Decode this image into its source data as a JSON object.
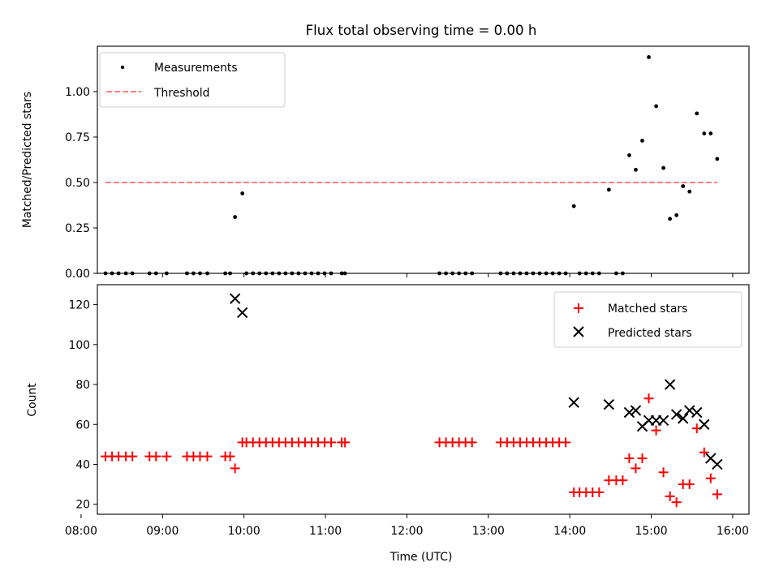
{
  "chart_data": [
    {
      "type": "scatter",
      "title": "Flux total observing time = 0.00 h",
      "ylabel": "Matched/Predicted stars",
      "xlabel": "",
      "xlim": [
        8.2,
        16.2
      ],
      "ylim": [
        0,
        1.25
      ],
      "x_ticks": [
        "08:00",
        "09:00",
        "10:00",
        "11:00",
        "12:00",
        "13:00",
        "14:00",
        "15:00",
        "16:00"
      ],
      "y_ticks": [
        "0.00",
        "0.25",
        "0.50",
        "0.75",
        "1.00"
      ],
      "legend_position": "upper-left",
      "grid": false,
      "series": [
        {
          "name": "Measurements",
          "color": "#000000",
          "marker": "dot",
          "points": [
            [
              8.3,
              0
            ],
            [
              8.38,
              0
            ],
            [
              8.46,
              0
            ],
            [
              8.55,
              0
            ],
            [
              8.63,
              0
            ],
            [
              8.84,
              0
            ],
            [
              8.92,
              0
            ],
            [
              9.05,
              0
            ],
            [
              9.3,
              0
            ],
            [
              9.38,
              0
            ],
            [
              9.46,
              0
            ],
            [
              9.55,
              0
            ],
            [
              9.77,
              0
            ],
            [
              9.83,
              0
            ],
            [
              9.89,
              0.31
            ],
            [
              9.98,
              0.44
            ],
            [
              10.03,
              0
            ],
            [
              10.11,
              0
            ],
            [
              10.19,
              0
            ],
            [
              10.27,
              0
            ],
            [
              10.35,
              0
            ],
            [
              10.43,
              0
            ],
            [
              10.51,
              0
            ],
            [
              10.59,
              0
            ],
            [
              10.67,
              0
            ],
            [
              10.75,
              0
            ],
            [
              10.83,
              0
            ],
            [
              10.91,
              0
            ],
            [
              10.99,
              0
            ],
            [
              11.07,
              0
            ],
            [
              11.2,
              0
            ],
            [
              11.24,
              0
            ],
            [
              12.4,
              0
            ],
            [
              12.48,
              0
            ],
            [
              12.56,
              0
            ],
            [
              12.64,
              0
            ],
            [
              12.72,
              0
            ],
            [
              12.8,
              0
            ],
            [
              13.15,
              0
            ],
            [
              13.23,
              0
            ],
            [
              13.31,
              0
            ],
            [
              13.39,
              0
            ],
            [
              13.47,
              0
            ],
            [
              13.55,
              0
            ],
            [
              13.63,
              0
            ],
            [
              13.71,
              0
            ],
            [
              13.79,
              0
            ],
            [
              13.87,
              0
            ],
            [
              13.95,
              0
            ],
            [
              14.05,
              0.37
            ],
            [
              14.12,
              0
            ],
            [
              14.2,
              0
            ],
            [
              14.28,
              0
            ],
            [
              14.36,
              0
            ],
            [
              14.48,
              0.46
            ],
            [
              14.57,
              0
            ],
            [
              14.65,
              0
            ],
            [
              14.73,
              0.65
            ],
            [
              14.81,
              0.57
            ],
            [
              14.89,
              0.73
            ],
            [
              14.97,
              1.19
            ],
            [
              15.06,
              0.92
            ],
            [
              15.15,
              0.58
            ],
            [
              15.23,
              0.3
            ],
            [
              15.31,
              0.32
            ],
            [
              15.39,
              0.48
            ],
            [
              15.47,
              0.45
            ],
            [
              15.56,
              0.88
            ],
            [
              15.65,
              0.77
            ],
            [
              15.73,
              0.77
            ],
            [
              15.81,
              0.63
            ]
          ]
        },
        {
          "name": "Threshold",
          "color": "#ff7f7f",
          "style": "dashed",
          "points": [
            [
              8.3,
              0.5
            ],
            [
              15.81,
              0.5
            ]
          ]
        }
      ]
    },
    {
      "type": "scatter",
      "title": "",
      "ylabel": "Count",
      "xlabel": "Time (UTC)",
      "xlim": [
        8.2,
        16.2
      ],
      "ylim": [
        15,
        130
      ],
      "x_ticks": [
        "08:00",
        "09:00",
        "10:00",
        "11:00",
        "12:00",
        "13:00",
        "14:00",
        "15:00",
        "16:00"
      ],
      "y_ticks": [
        "20",
        "40",
        "60",
        "80",
        "100",
        "120"
      ],
      "legend_position": "upper-right",
      "grid": false,
      "series": [
        {
          "name": "Matched stars",
          "color": "#ff0000",
          "marker": "plus",
          "points": [
            [
              8.3,
              44
            ],
            [
              8.38,
              44
            ],
            [
              8.46,
              44
            ],
            [
              8.55,
              44
            ],
            [
              8.63,
              44
            ],
            [
              8.84,
              44
            ],
            [
              8.92,
              44
            ],
            [
              9.05,
              44
            ],
            [
              9.3,
              44
            ],
            [
              9.38,
              44
            ],
            [
              9.46,
              44
            ],
            [
              9.55,
              44
            ],
            [
              9.77,
              44
            ],
            [
              9.83,
              44
            ],
            [
              9.89,
              38
            ],
            [
              9.98,
              51
            ],
            [
              10.03,
              51
            ],
            [
              10.11,
              51
            ],
            [
              10.19,
              51
            ],
            [
              10.27,
              51
            ],
            [
              10.35,
              51
            ],
            [
              10.43,
              51
            ],
            [
              10.51,
              51
            ],
            [
              10.59,
              51
            ],
            [
              10.67,
              51
            ],
            [
              10.75,
              51
            ],
            [
              10.83,
              51
            ],
            [
              10.91,
              51
            ],
            [
              10.99,
              51
            ],
            [
              11.07,
              51
            ],
            [
              11.2,
              51
            ],
            [
              11.24,
              51
            ],
            [
              12.4,
              51
            ],
            [
              12.48,
              51
            ],
            [
              12.56,
              51
            ],
            [
              12.64,
              51
            ],
            [
              12.72,
              51
            ],
            [
              12.8,
              51
            ],
            [
              13.15,
              51
            ],
            [
              13.23,
              51
            ],
            [
              13.31,
              51
            ],
            [
              13.39,
              51
            ],
            [
              13.47,
              51
            ],
            [
              13.55,
              51
            ],
            [
              13.63,
              51
            ],
            [
              13.71,
              51
            ],
            [
              13.79,
              51
            ],
            [
              13.87,
              51
            ],
            [
              13.95,
              51
            ],
            [
              14.05,
              26
            ],
            [
              14.12,
              26
            ],
            [
              14.2,
              26
            ],
            [
              14.28,
              26
            ],
            [
              14.36,
              26
            ],
            [
              14.48,
              32
            ],
            [
              14.57,
              32
            ],
            [
              14.65,
              32
            ],
            [
              14.73,
              43
            ],
            [
              14.81,
              38
            ],
            [
              14.89,
              43
            ],
            [
              14.97,
              73
            ],
            [
              15.06,
              57
            ],
            [
              15.15,
              36
            ],
            [
              15.23,
              24
            ],
            [
              15.31,
              21
            ],
            [
              15.39,
              30
            ],
            [
              15.47,
              30
            ],
            [
              15.56,
              58
            ],
            [
              15.65,
              46
            ],
            [
              15.73,
              33
            ],
            [
              15.81,
              25
            ]
          ]
        },
        {
          "name": "Predicted stars",
          "color": "#000000",
          "marker": "x",
          "points": [
            [
              9.89,
              123
            ],
            [
              9.98,
              116
            ],
            [
              14.05,
              71
            ],
            [
              14.48,
              70
            ],
            [
              14.73,
              66
            ],
            [
              14.81,
              67
            ],
            [
              14.89,
              59
            ],
            [
              14.97,
              62
            ],
            [
              15.06,
              62
            ],
            [
              15.15,
              62
            ],
            [
              15.23,
              80
            ],
            [
              15.31,
              65
            ],
            [
              15.39,
              63
            ],
            [
              15.47,
              67
            ],
            [
              15.56,
              66
            ],
            [
              15.65,
              60
            ],
            [
              15.73,
              43
            ],
            [
              15.81,
              40
            ]
          ]
        }
      ]
    }
  ]
}
